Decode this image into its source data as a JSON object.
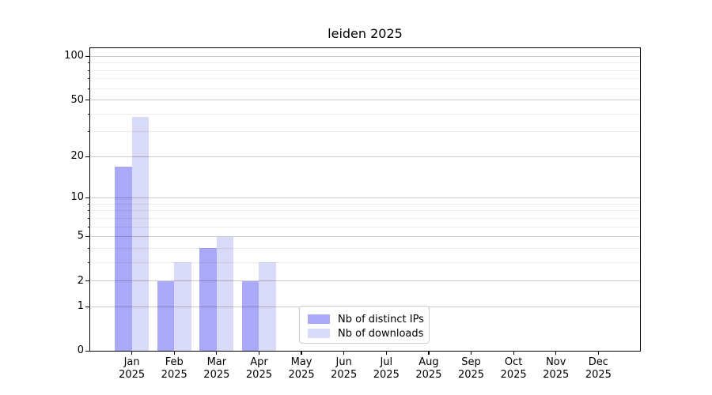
{
  "chart_data": {
    "type": "bar",
    "title": "leiden 2025",
    "x_months": [
      "Jan",
      "Feb",
      "Mar",
      "Apr",
      "May",
      "Jun",
      "Jul",
      "Aug",
      "Sep",
      "Oct",
      "Nov",
      "Dec"
    ],
    "x_year": "2025",
    "series": [
      {
        "name": "Nb of distinct IPs",
        "color": "#a9a9f8",
        "values": [
          17,
          2,
          4,
          2,
          0,
          0,
          0,
          0,
          0,
          0,
          0,
          0
        ]
      },
      {
        "name": "Nb of downloads",
        "color": "#d9d9f8",
        "values": [
          38,
          3,
          5,
          3,
          0,
          0,
          0,
          0,
          0,
          0,
          0,
          0
        ]
      }
    ],
    "y_scale": "log10(1+y)",
    "y_major_ticks": [
      0,
      1,
      2,
      5,
      10,
      20,
      50,
      100
    ],
    "y_minor_ticks": [
      3,
      4,
      6,
      7,
      8,
      9,
      30,
      40,
      60,
      70,
      80,
      90
    ],
    "ylim": [
      0,
      115
    ],
    "xlabel": "",
    "ylabel": "",
    "grid": "horizontal-on-top-of-bars",
    "legend_position": "inside-bottom-center-left",
    "colors": {
      "background": "#ffffff",
      "spine": "#000000",
      "grid_major": "#c8c8c8",
      "grid_minor": "#ededed",
      "text": "#000000",
      "legend_border": "#cccccc"
    }
  }
}
